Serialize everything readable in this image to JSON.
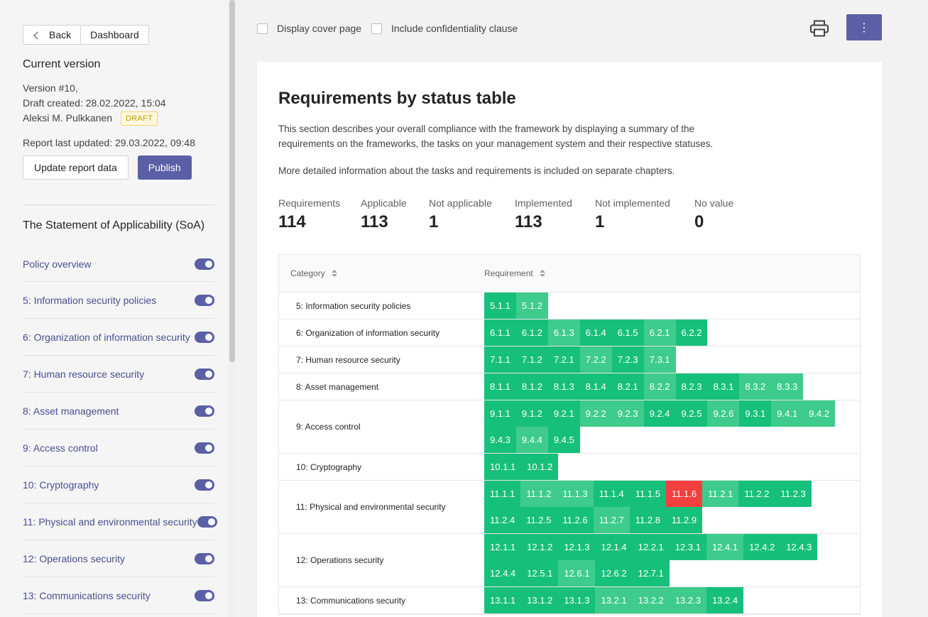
{
  "sidebar": {
    "back_label": "Back",
    "dashboard_label": "Dashboard",
    "current_version_title": "Current version",
    "version_line": "Version #10,",
    "draft_created": "Draft created: 28.02.2022, 15:04",
    "author": "Aleksi M. Pulkkanen",
    "draft_badge": "DRAFT",
    "report_updated": "Report last updated: 29.03.2022, 09:48",
    "update_button": "Update report data",
    "publish_button": "Publish",
    "soa_title": "The Statement of Applicability (SoA)",
    "items": [
      {
        "label": "Policy overview",
        "enabled": true
      },
      {
        "label": "5: Information security policies",
        "enabled": true
      },
      {
        "label": "6: Organization of information security",
        "enabled": true
      },
      {
        "label": "7: Human resource security",
        "enabled": true
      },
      {
        "label": "8: Asset management",
        "enabled": true
      },
      {
        "label": "9: Access control",
        "enabled": true
      },
      {
        "label": "10: Cryptography",
        "enabled": true
      },
      {
        "label": "11: Physical and environmental security",
        "enabled": true
      },
      {
        "label": "12: Operations security",
        "enabled": true
      },
      {
        "label": "13: Communications security",
        "enabled": true
      }
    ]
  },
  "topbar": {
    "cover_page_label": "Display cover page",
    "confidentiality_label": "Include confidentiality clause",
    "print_icon": "printer-icon",
    "more_icon": "more-vertical-icon",
    "more_glyph": "⋮"
  },
  "content": {
    "title": "Requirements by status table",
    "description": "This section describes your overall compliance with the framework by displaying a summary of the requirements on the frameworks, the tasks on your management system and their respective statuses.",
    "description2": "More detailed information about the tasks and requirements is included on separate chapters.",
    "stats": [
      {
        "label": "Requirements",
        "value": "114"
      },
      {
        "label": "Applicable",
        "value": "113"
      },
      {
        "label": "Not applicable",
        "value": "1"
      },
      {
        "label": "Implemented",
        "value": "113"
      },
      {
        "label": "Not implemented",
        "value": "1"
      },
      {
        "label": "No value",
        "value": "0"
      }
    ],
    "table": {
      "col_category": "Category",
      "col_requirement": "Requirement",
      "colors": {
        "implemented": "#17c07a",
        "implemented_alt": "#3ecb8c",
        "not_implemented": "#f43f3f"
      },
      "rows": [
        {
          "category": "5: Information security policies",
          "reqs": [
            [
              "5.1.1",
              "g"
            ],
            [
              "5.1.2",
              "l"
            ]
          ]
        },
        {
          "category": "6: Organization of information security",
          "reqs": [
            [
              "6.1.1",
              "g"
            ],
            [
              "6.1.2",
              "g"
            ],
            [
              "6.1.3",
              "l"
            ],
            [
              "6.1.4",
              "g"
            ],
            [
              "6.1.5",
              "g"
            ],
            [
              "6.2.1",
              "l"
            ],
            [
              "6.2.2",
              "g"
            ]
          ]
        },
        {
          "category": "7: Human resource security",
          "reqs": [
            [
              "7.1.1",
              "g"
            ],
            [
              "7.1.2",
              "g"
            ],
            [
              "7.2.1",
              "g"
            ],
            [
              "7.2.2",
              "l"
            ],
            [
              "7.2.3",
              "g"
            ],
            [
              "7.3.1",
              "l"
            ]
          ]
        },
        {
          "category": "8: Asset management",
          "reqs": [
            [
              "8.1.1",
              "g"
            ],
            [
              "8.1.2",
              "g"
            ],
            [
              "8.1.3",
              "g"
            ],
            [
              "8.1.4",
              "g"
            ],
            [
              "8.2.1",
              "g"
            ],
            [
              "8.2.2",
              "l"
            ],
            [
              "8.2.3",
              "g"
            ],
            [
              "8.3.1",
              "g"
            ],
            [
              "8.3.2",
              "l"
            ],
            [
              "8.3.3",
              "l"
            ]
          ]
        },
        {
          "category": "9: Access control",
          "reqs": [
            [
              "9.1.1",
              "g"
            ],
            [
              "9.1.2",
              "g"
            ],
            [
              "9.2.1",
              "g"
            ],
            [
              "9.2.2",
              "l"
            ],
            [
              "9.2.3",
              "l"
            ],
            [
              "9.2.4",
              "g"
            ],
            [
              "9.2.5",
              "g"
            ],
            [
              "9.2.6",
              "l"
            ],
            [
              "9.3.1",
              "g"
            ],
            [
              "9.4.1",
              "l"
            ],
            [
              "9.4.2",
              "l"
            ],
            [
              "9.4.3",
              "g"
            ],
            [
              "9.4.4",
              "l"
            ],
            [
              "9.4.5",
              "g"
            ]
          ]
        },
        {
          "category": "10: Cryptography",
          "reqs": [
            [
              "10.1.1",
              "g"
            ],
            [
              "10.1.2",
              "g"
            ]
          ]
        },
        {
          "category": "11: Physical and environmental security",
          "reqs": [
            [
              "11.1.1",
              "g"
            ],
            [
              "11.1.2",
              "l"
            ],
            [
              "11.1.3",
              "l"
            ],
            [
              "11.1.4",
              "g"
            ],
            [
              "11.1.5",
              "g"
            ],
            [
              "11.1.6",
              "r"
            ],
            [
              "11.2.1",
              "l"
            ],
            [
              "11.2.2",
              "g"
            ],
            [
              "11.2.3",
              "g"
            ],
            [
              "11.2.4",
              "g"
            ],
            [
              "11.2.5",
              "g"
            ],
            [
              "11.2.6",
              "g"
            ],
            [
              "11.2.7",
              "l"
            ],
            [
              "11.2.8",
              "g"
            ],
            [
              "11.2.9",
              "g"
            ]
          ]
        },
        {
          "category": "12: Operations security",
          "reqs": [
            [
              "12.1.1",
              "g"
            ],
            [
              "12.1.2",
              "g"
            ],
            [
              "12.1.3",
              "g"
            ],
            [
              "12.1.4",
              "g"
            ],
            [
              "12.2.1",
              "g"
            ],
            [
              "12.3.1",
              "g"
            ],
            [
              "12.4.1",
              "l"
            ],
            [
              "12.4.2",
              "g"
            ],
            [
              "12.4.3",
              "g"
            ],
            [
              "12.4.4",
              "g"
            ],
            [
              "12.5.1",
              "g"
            ],
            [
              "12.6.1",
              "l"
            ],
            [
              "12.6.2",
              "g"
            ],
            [
              "12.7.1",
              "g"
            ]
          ]
        },
        {
          "category": "13: Communications security",
          "reqs": [
            [
              "13.1.1",
              "g"
            ],
            [
              "13.1.2",
              "g"
            ],
            [
              "13.1.3",
              "g"
            ],
            [
              "13.2.1",
              "l"
            ],
            [
              "13.2.2",
              "l"
            ],
            [
              "13.2.3",
              "l"
            ],
            [
              "13.2.4",
              "g"
            ]
          ]
        }
      ]
    }
  }
}
